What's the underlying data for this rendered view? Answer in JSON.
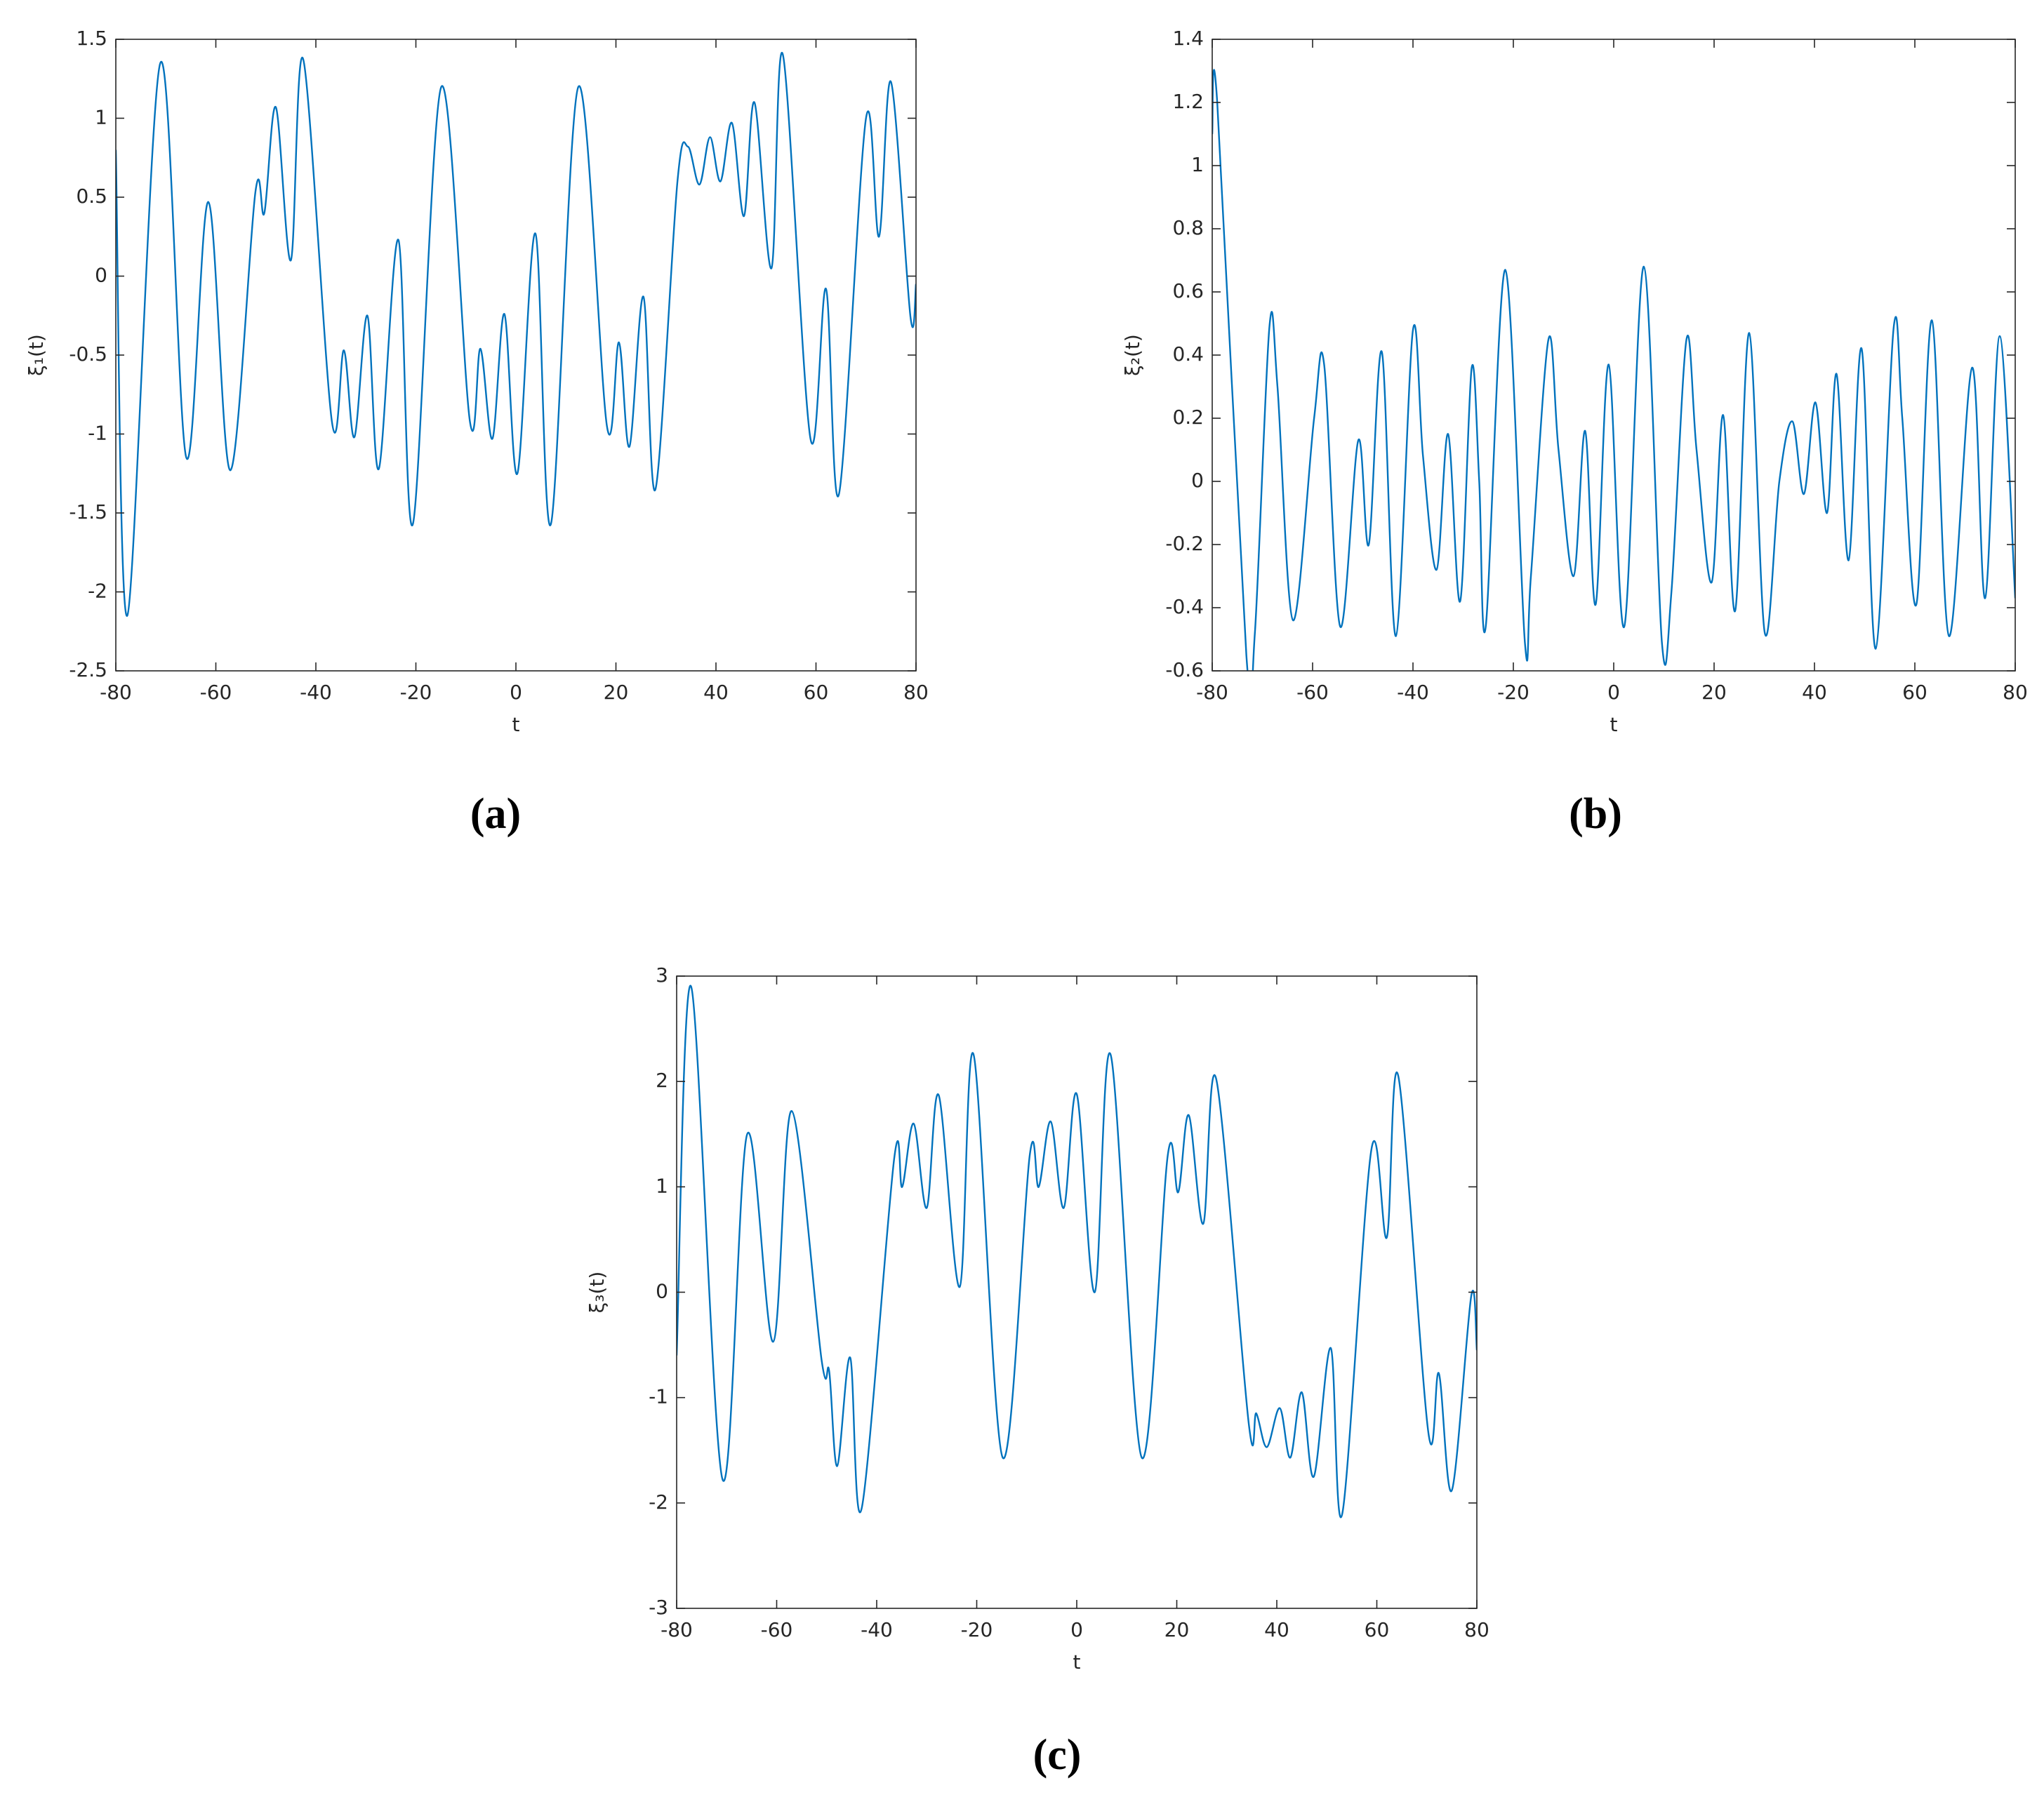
{
  "chart_data": [
    {
      "type": "line",
      "caption": "(a)",
      "xlabel": "t",
      "ylabel": "ξ₁(t)",
      "color": "#0072bd",
      "xlim": [
        -80,
        80
      ],
      "ylim": [
        -2.5,
        1.5
      ],
      "xticks": [
        -80,
        -60,
        -40,
        -20,
        0,
        20,
        40,
        60,
        80
      ],
      "yticks": [
        -2.5,
        -2,
        -1.5,
        -1,
        -0.5,
        0,
        0.5,
        1,
        1.5
      ],
      "x": [
        -80,
        -77.7,
        -71.1,
        -65.9,
        -61.5,
        -57.1,
        -52.1,
        -50.3,
        -48,
        -45,
        -42.5,
        -36.8,
        -34.4,
        -32.3,
        -29.7,
        -27.4,
        -23.5,
        -20.6,
        -14.9,
        -9.2,
        -7.1,
        -4.7,
        -2.3,
        0.3,
        3.9,
        7,
        12.5,
        18.2,
        20.6,
        22.7,
        25.5,
        27.9,
        32.3,
        34.4,
        36.7,
        38.8,
        40.9,
        43.2,
        45.6,
        47.7,
        51.1,
        53.4,
        58.9,
        62,
        64.6,
        70,
        72.6,
        75,
        78.9,
        80
      ],
      "values": [
        0.8,
        -2.15,
        1.35,
        -1.15,
        0.47,
        -1.23,
        0.53,
        0.4,
        1.07,
        0.1,
        1.37,
        -0.92,
        -0.47,
        -1.02,
        -0.25,
        -1.22,
        0.23,
        -1.57,
        1.2,
        -0.92,
        -0.46,
        -1.03,
        -0.24,
        -1.25,
        0.27,
        -1.57,
        1.2,
        -0.95,
        -0.42,
        -1.08,
        -0.13,
        -1.35,
        0.6,
        0.82,
        0.58,
        0.88,
        0.6,
        0.97,
        0.38,
        1.1,
        0.05,
        1.4,
        -1.03,
        -0.08,
        -1.38,
        1.0,
        0.25,
        1.23,
        -0.26,
        -0.05
      ]
    },
    {
      "type": "line",
      "caption": "(b)",
      "xlabel": "t",
      "ylabel": "ξ₂(t)",
      "color": "#0072bd",
      "xlim": [
        -80,
        80
      ],
      "ylim": [
        -0.6,
        1.4
      ],
      "xticks": [
        -80,
        -60,
        -40,
        -20,
        0,
        20,
        40,
        60,
        80
      ],
      "yticks": [
        -0.6,
        -0.4,
        -0.2,
        0,
        0.2,
        0.4,
        0.6,
        0.8,
        1,
        1.2,
        1.4
      ],
      "x": [
        -80,
        -79,
        -73.2,
        -71.5,
        -68.6,
        -67,
        -63.9,
        -59.7,
        -57.7,
        -54.5,
        -50.9,
        -48.8,
        -46.2,
        -43.4,
        -40,
        -38,
        -35.3,
        -33,
        -30.6,
        -28.3,
        -26.8,
        -25.5,
        -21.6,
        -17.7,
        -16.5,
        -13,
        -11,
        -8,
        -5.7,
        -3.6,
        -1,
        2.1,
        6,
        9.6,
        11.5,
        14.5,
        16.5,
        19.5,
        21.8,
        24.2,
        27,
        30.1,
        33,
        35.6,
        37.9,
        40.2,
        42.5,
        44.4,
        46.8,
        49.4,
        52.2,
        55.8,
        57.5,
        60.3,
        63.4,
        66.8,
        71.4,
        74,
        76.9,
        80
      ],
      "values": [
        1.1,
        1.2,
        -0.55,
        -0.48,
        0.49,
        0.3,
        -0.44,
        0.2,
        0.37,
        -0.46,
        0.13,
        -0.2,
        0.41,
        -0.49,
        0.48,
        0.08,
        -0.28,
        0.15,
        -0.38,
        0.36,
        0.0,
        -0.46,
        0.67,
        -0.51,
        -0.3,
        0.45,
        0.1,
        -0.3,
        0.16,
        -0.39,
        0.37,
        -0.46,
        0.68,
        -0.51,
        -0.35,
        0.45,
        0.1,
        -0.32,
        0.21,
        -0.41,
        0.47,
        -0.48,
        0.0,
        0.19,
        -0.04,
        0.25,
        -0.1,
        0.34,
        -0.25,
        0.42,
        -0.53,
        0.49,
        0.2,
        -0.39,
        0.51,
        -0.49,
        0.36,
        -0.37,
        0.46,
        -0.37
      ]
    },
    {
      "type": "line",
      "caption": "(c)",
      "xlabel": "t",
      "ylabel": "ξ₃(t)",
      "color": "#0072bd",
      "xlim": [
        -80,
        80
      ],
      "ylim": [
        -3,
        3
      ],
      "xticks": [
        -80,
        -60,
        -40,
        -20,
        0,
        20,
        40,
        60,
        80
      ],
      "yticks": [
        -3,
        -2,
        -1,
        0,
        1,
        2,
        3
      ],
      "x": [
        -80,
        -77.1,
        -70.8,
        -65.9,
        -60.7,
        -57,
        -51,
        -49.5,
        -47.9,
        -45.3,
        -43,
        -36.5,
        -34.9,
        -32.6,
        -30,
        -27.6,
        -23.4,
        -20.6,
        -14.8,
        -9.4,
        -7.6,
        -5.2,
        -2.6,
        0,
        3.6,
        6.8,
        13,
        18.2,
        20.3,
        22.4,
        25.3,
        27.9,
        34.4,
        35.9,
        38,
        40.6,
        42.7,
        45,
        47.4,
        50.8,
        53.1,
        58.9,
        62,
        64.3,
        70.3,
        72.4,
        75,
        78.9,
        80
      ],
      "values": [
        -0.6,
        2.9,
        -1.78,
        1.5,
        -0.47,
        1.72,
        -0.65,
        -0.75,
        -1.65,
        -0.62,
        -2.05,
        1.27,
        1.0,
        1.6,
        0.8,
        1.87,
        0.05,
        2.25,
        -1.57,
        1.3,
        1.0,
        1.62,
        0.8,
        1.88,
        0.0,
        2.25,
        -1.57,
        1.3,
        0.95,
        1.68,
        0.65,
        2.02,
        -1.25,
        -1.15,
        -1.47,
        -1.1,
        -1.57,
        -0.95,
        -1.75,
        -0.53,
        -2.1,
        1.35,
        0.52,
        2.05,
        -1.33,
        -0.77,
        -1.88,
        -0.03,
        -0.55
      ]
    }
  ]
}
